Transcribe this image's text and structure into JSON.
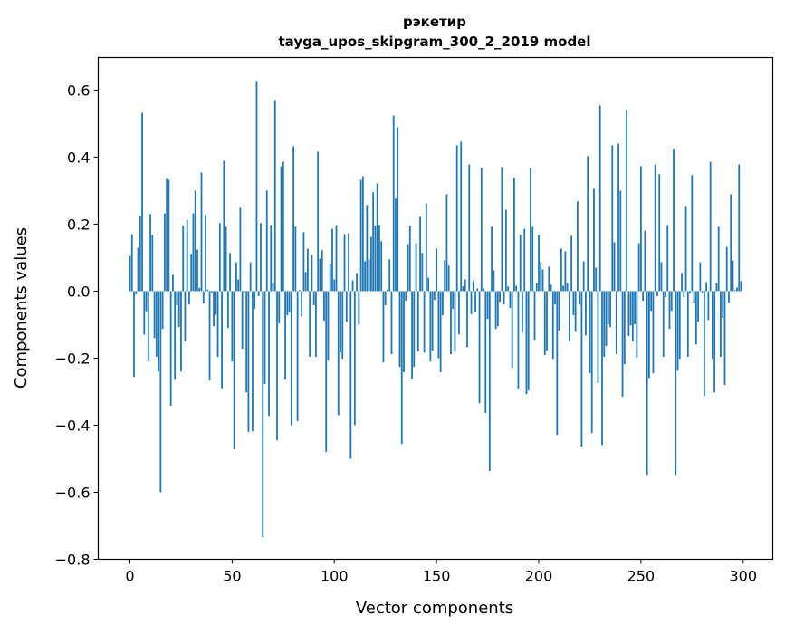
{
  "chart_data": {
    "type": "bar",
    "title": "рэкетир",
    "subtitle": "tayga_upos_skipgram_300_2_2019 model",
    "xlabel": "Vector components",
    "ylabel": "Components values",
    "xlim": [
      -15.5,
      314.5
    ],
    "ylim": [
      -0.8,
      0.697
    ],
    "xticks": [
      0,
      50,
      100,
      150,
      200,
      250,
      300
    ],
    "xtick_labels": [
      "0",
      "50",
      "100",
      "150",
      "200",
      "250",
      "300"
    ],
    "yticks": [
      -0.8,
      -0.6,
      -0.4,
      -0.2,
      0.0,
      0.2,
      0.4,
      0.6
    ],
    "ytick_labels": [
      "−0.8",
      "−0.6",
      "−0.4",
      "−0.2",
      "0.0",
      "0.2",
      "0.4",
      "0.6"
    ],
    "grid": false,
    "bar_color": "#1f77b4",
    "values": [
      0.105,
      0.17,
      -0.256,
      -0.01,
      0.13,
      0.224,
      0.532,
      -0.13,
      -0.06,
      -0.21,
      0.23,
      0.168,
      -0.14,
      -0.196,
      -0.24,
      -0.6,
      -0.113,
      0.232,
      0.335,
      0.332,
      -0.342,
      0.049,
      -0.264,
      -0.042,
      -0.107,
      -0.24,
      0.195,
      -0.15,
      0.213,
      -0.04,
      0.111,
      0.232,
      0.3,
      0.124,
      0.01,
      0.354,
      -0.037,
      0.227,
      0.005,
      -0.267,
      -0.005,
      -0.105,
      -0.07,
      -0.196,
      0.203,
      -0.29,
      0.389,
      0.192,
      -0.11,
      0.114,
      -0.21,
      -0.472,
      0.086,
      0.035,
      0.249,
      -0.172,
      -0.003,
      -0.302,
      -0.42,
      0.086,
      -0.418,
      -0.053,
      0.627,
      -0.015,
      0.203,
      -0.734,
      -0.277,
      0.3,
      -0.372,
      0.197,
      0.024,
      0.57,
      -0.445,
      -0.096,
      0.373,
      0.386,
      -0.264,
      -0.072,
      -0.064,
      -0.4,
      0.432,
      0.192,
      -0.388,
      0.003,
      -0.075,
      0.176,
      0.057,
      0.127,
      -0.196,
      0.108,
      -0.042,
      -0.196,
      0.416,
      0.097,
      0.122,
      -0.088,
      -0.48,
      -0.207,
      0.081,
      0.186,
      0.035,
      0.197,
      -0.37,
      -0.183,
      -0.202,
      0.17,
      -0.091,
      0.173,
      -0.5,
      0.032,
      -0.4,
      0.054,
      -0.1,
      0.332,
      0.343,
      0.089,
      0.257,
      0.095,
      0.162,
      0.295,
      0.195,
      0.322,
      0.197,
      0.149,
      -0.213,
      -0.042,
      0.005,
      0.095,
      -0.188,
      0.524,
      0.276,
      0.489,
      -0.226,
      -0.456,
      -0.242,
      -0.029,
      0.14,
      0.195,
      -0.261,
      -0.226,
      0.143,
      -0.18,
      0.222,
      0.114,
      -0.183,
      0.262,
      0.04,
      -0.21,
      -0.177,
      -0.026,
      0.127,
      -0.2,
      -0.242,
      -0.072,
      0.092,
      0.289,
      0.076,
      -0.188,
      -0.053,
      -0.18,
      0.435,
      -0.129,
      0.446,
      0.014,
      0.035,
      -0.167,
      0.378,
      -0.069,
      0.03,
      -0.061,
      0.008,
      -0.334,
      0.368,
      0.008,
      -0.364,
      -0.083,
      -0.537,
      0.192,
      0.062,
      -0.113,
      -0.105,
      -0.032,
      0.37,
      -0.04,
      0.243,
      0.014,
      -0.05,
      -0.229,
      0.338,
      0.016,
      -0.291,
      0.168,
      -0.123,
      0.186,
      -0.307,
      -0.296,
      0.368,
      0.192,
      -0.145,
      0.024,
      0.168,
      0.086,
      0.065,
      -0.191,
      -0.177,
      0.073,
      0.019,
      -0.202,
      -0.04,
      -0.429,
      -0.118,
      0.127,
      0.016,
      0.119,
      0.024,
      -0.148,
      0.165,
      -0.072,
      -0.121,
      0.268,
      -0.04,
      -0.464,
      0.089,
      -0.132,
      0.403,
      -0.245,
      -0.423,
      0.305,
      0.07,
      -0.275,
      0.554,
      -0.459,
      -0.196,
      -0.164,
      -0.099,
      -0.107,
      0.435,
      0.146,
      -0.188,
      0.44,
      0.3,
      -0.315,
      -0.218,
      0.54,
      -0.134,
      -0.102,
      -0.15,
      -0.099,
      -0.199,
      0.143,
      0.373,
      -0.029,
      0.181,
      -0.548,
      -0.259,
      -0.059,
      -0.245,
      0.378,
      -0.015,
      0.349,
      0.086,
      -0.196,
      -0.018,
      0.197,
      -0.113,
      -0.059,
      0.424,
      -0.548,
      -0.237,
      -0.202,
      0.054,
      -0.018,
      0.254,
      -0.196,
      -0.007,
      0.346,
      -0.034,
      -0.159,
      -0.091,
      0.086,
      -0.005,
      -0.313,
      0.027,
      -0.086,
      0.386,
      -0.202,
      -0.302,
      0.024,
      0.192,
      -0.196,
      -0.08,
      -0.28,
      0.132,
      -0.034,
      0.289,
      0.092,
      0.003,
      0.011,
      0.378,
      0.03
    ]
  }
}
